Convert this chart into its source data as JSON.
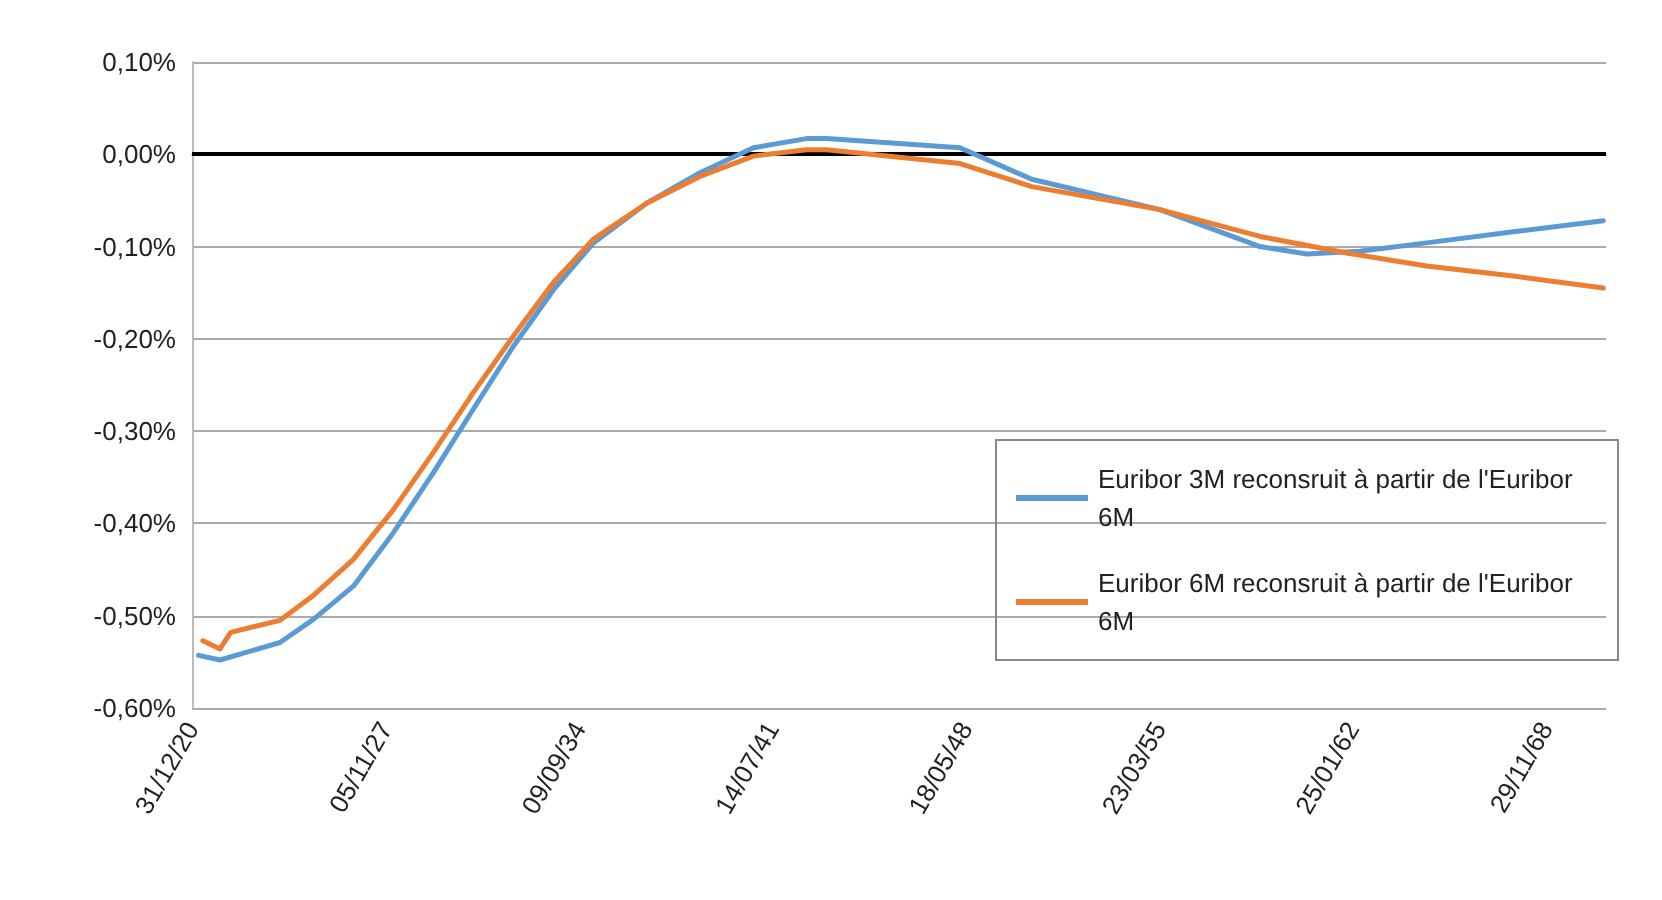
{
  "chart_data": {
    "type": "line",
    "xlim": [
      "2020-12-31",
      "2071-01-14"
    ],
    "xticks": [
      {
        "value": "2020-12-31",
        "label": "31/12/20"
      },
      {
        "value": "2027-11-05",
        "label": "05/11/27"
      },
      {
        "value": "2034-09-09",
        "label": "09/09/34"
      },
      {
        "value": "2041-07-14",
        "label": "14/07/41"
      },
      {
        "value": "2048-05-18",
        "label": "18/05/48"
      },
      {
        "value": "2055-03-23",
        "label": "23/03/55"
      },
      {
        "value": "2062-01-25",
        "label": "25/01/62"
      },
      {
        "value": "2068-11-29",
        "label": "29/11/68"
      }
    ],
    "ylim": [
      -0.6,
      0.1
    ],
    "yticks": [
      {
        "value": -0.6,
        "label": "-0,60%"
      },
      {
        "value": -0.5,
        "label": "-0,50%"
      },
      {
        "value": -0.4,
        "label": "-0,40%"
      },
      {
        "value": -0.3,
        "label": "-0,30%"
      },
      {
        "value": -0.2,
        "label": "-0,20%"
      },
      {
        "value": -0.1,
        "label": "-0,10%"
      },
      {
        "value": 0,
        "label": "0,00%"
      },
      {
        "value": 0.1,
        "label": "0,10%"
      }
    ],
    "grid": "y",
    "legend": "right",
    "marker": "none",
    "line_style": "solid",
    "ref_lines": [
      {
        "axis": "y",
        "value": 0,
        "color": "#000000"
      }
    ],
    "series": [
      {
        "name": "Euribor 3M reconsruit à partir de l'Euribor 6M",
        "color": "#5b9bd5",
        "x": [
          "2021-03-26",
          "2021-12-28",
          "2024-02-11",
          "2025-04-18",
          "2026-09-17",
          "2028-02-16",
          "2029-07-17",
          "2030-12-16",
          "2032-05-16",
          "2033-10-15",
          "2035-03-16",
          "2037-02-01",
          "2038-12-23",
          "2040-11-12",
          "2042-10-01",
          "2043-06-16",
          "2048-03-05",
          "2050-09-19",
          "2055-04-03",
          "2058-10-17",
          "2060-06-11",
          "2062-05-01",
          "2064-09-08",
          "2067-10-05",
          "2070-12-11"
        ],
        "values": [
          -0.543,
          -0.548,
          -0.529,
          -0.504,
          -0.468,
          -0.41,
          -0.345,
          -0.276,
          -0.208,
          -0.147,
          -0.096,
          -0.053,
          -0.02,
          0.007,
          0.017,
          0.017,
          0.007,
          -0.027,
          -0.06,
          -0.1,
          -0.108,
          -0.105,
          -0.096,
          -0.084,
          -0.072
        ]
      },
      {
        "name": "Euribor 6M reconsruit à partir de l'Euribor 6M",
        "color": "#ed7d31",
        "x": [
          "2021-05-21",
          "2021-12-28",
          "2022-05-15",
          "2024-02-11",
          "2025-04-18",
          "2026-09-17",
          "2028-02-16",
          "2029-07-17",
          "2030-12-16",
          "2032-05-16",
          "2033-10-15",
          "2035-03-16",
          "2037-02-01",
          "2038-12-23",
          "2040-11-12",
          "2042-10-01",
          "2043-06-16",
          "2048-03-05",
          "2050-09-19",
          "2055-04-03",
          "2058-10-17",
          "2061-11-10",
          "2064-09-08",
          "2067-10-05",
          "2070-12-11"
        ],
        "values": [
          -0.527,
          -0.536,
          -0.518,
          -0.505,
          -0.478,
          -0.439,
          -0.385,
          -0.323,
          -0.258,
          -0.197,
          -0.139,
          -0.092,
          -0.053,
          -0.024,
          -0.002,
          0.005,
          0.005,
          -0.01,
          -0.035,
          -0.06,
          -0.089,
          -0.107,
          -0.121,
          -0.132,
          -0.145
        ]
      }
    ]
  }
}
